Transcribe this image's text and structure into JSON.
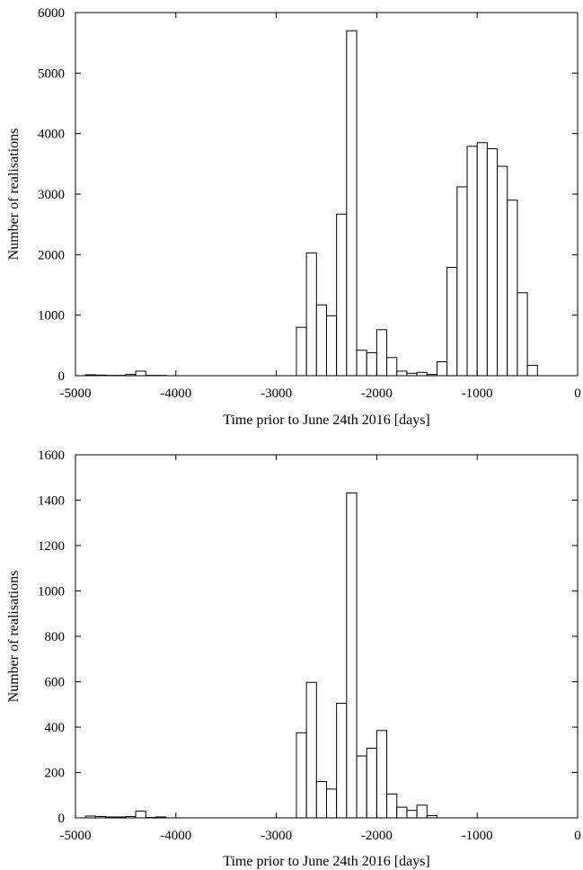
{
  "chart_data": [
    {
      "type": "bar",
      "xlabel": "Time prior to June 24th 2016 [days]",
      "ylabel": "Number of realisations",
      "xlim": [
        -5000,
        0
      ],
      "ylim": [
        0,
        6000
      ],
      "xticks": [
        -5000,
        -4000,
        -3000,
        -2000,
        -1000,
        0
      ],
      "yticks": [
        0,
        1000,
        2000,
        3000,
        4000,
        5000,
        6000
      ],
      "bin_width": 100,
      "bins": [
        {
          "x": -4900,
          "value": 15
        },
        {
          "x": -4800,
          "value": 10
        },
        {
          "x": -4700,
          "value": 5
        },
        {
          "x": -4600,
          "value": 5
        },
        {
          "x": -4500,
          "value": 20
        },
        {
          "x": -4400,
          "value": 75
        },
        {
          "x": -4300,
          "value": 5
        },
        {
          "x": -4200,
          "value": 5
        },
        {
          "x": -2800,
          "value": 800
        },
        {
          "x": -2700,
          "value": 2030
        },
        {
          "x": -2600,
          "value": 1170
        },
        {
          "x": -2500,
          "value": 990
        },
        {
          "x": -2400,
          "value": 2670
        },
        {
          "x": -2300,
          "value": 5700
        },
        {
          "x": -2200,
          "value": 420
        },
        {
          "x": -2100,
          "value": 380
        },
        {
          "x": -2000,
          "value": 760
        },
        {
          "x": -1900,
          "value": 300
        },
        {
          "x": -1800,
          "value": 75
        },
        {
          "x": -1700,
          "value": 40
        },
        {
          "x": -1600,
          "value": 55
        },
        {
          "x": -1500,
          "value": 20
        },
        {
          "x": -1400,
          "value": 230
        },
        {
          "x": -1300,
          "value": 1790
        },
        {
          "x": -1200,
          "value": 3120
        },
        {
          "x": -1100,
          "value": 3790
        },
        {
          "x": -1000,
          "value": 3850
        },
        {
          "x": -900,
          "value": 3750
        },
        {
          "x": -800,
          "value": 3460
        },
        {
          "x": -700,
          "value": 2900
        },
        {
          "x": -600,
          "value": 1370
        },
        {
          "x": -500,
          "value": 170
        }
      ]
    },
    {
      "type": "bar",
      "xlabel": "Time prior to June 24th 2016 [days]",
      "ylabel": "Number of realisations",
      "xlim": [
        -5000,
        0
      ],
      "ylim": [
        0,
        1600
      ],
      "xticks": [
        -5000,
        -4000,
        -3000,
        -2000,
        -1000,
        0
      ],
      "yticks": [
        0,
        200,
        400,
        600,
        800,
        1000,
        1200,
        1400,
        1600
      ],
      "bin_width": 100,
      "bins": [
        {
          "x": -4900,
          "value": 8
        },
        {
          "x": -4800,
          "value": 6
        },
        {
          "x": -4700,
          "value": 4
        },
        {
          "x": -4600,
          "value": 4
        },
        {
          "x": -4500,
          "value": 6
        },
        {
          "x": -4400,
          "value": 30
        },
        {
          "x": -4300,
          "value": 2
        },
        {
          "x": -4200,
          "value": 4
        },
        {
          "x": -2800,
          "value": 375
        },
        {
          "x": -2700,
          "value": 597
        },
        {
          "x": -2600,
          "value": 160
        },
        {
          "x": -2500,
          "value": 127
        },
        {
          "x": -2400,
          "value": 505
        },
        {
          "x": -2300,
          "value": 1432
        },
        {
          "x": -2200,
          "value": 273
        },
        {
          "x": -2100,
          "value": 307
        },
        {
          "x": -2000,
          "value": 385
        },
        {
          "x": -1900,
          "value": 105
        },
        {
          "x": -1800,
          "value": 47
        },
        {
          "x": -1700,
          "value": 33
        },
        {
          "x": -1600,
          "value": 56
        },
        {
          "x": -1500,
          "value": 10
        }
      ]
    }
  ]
}
